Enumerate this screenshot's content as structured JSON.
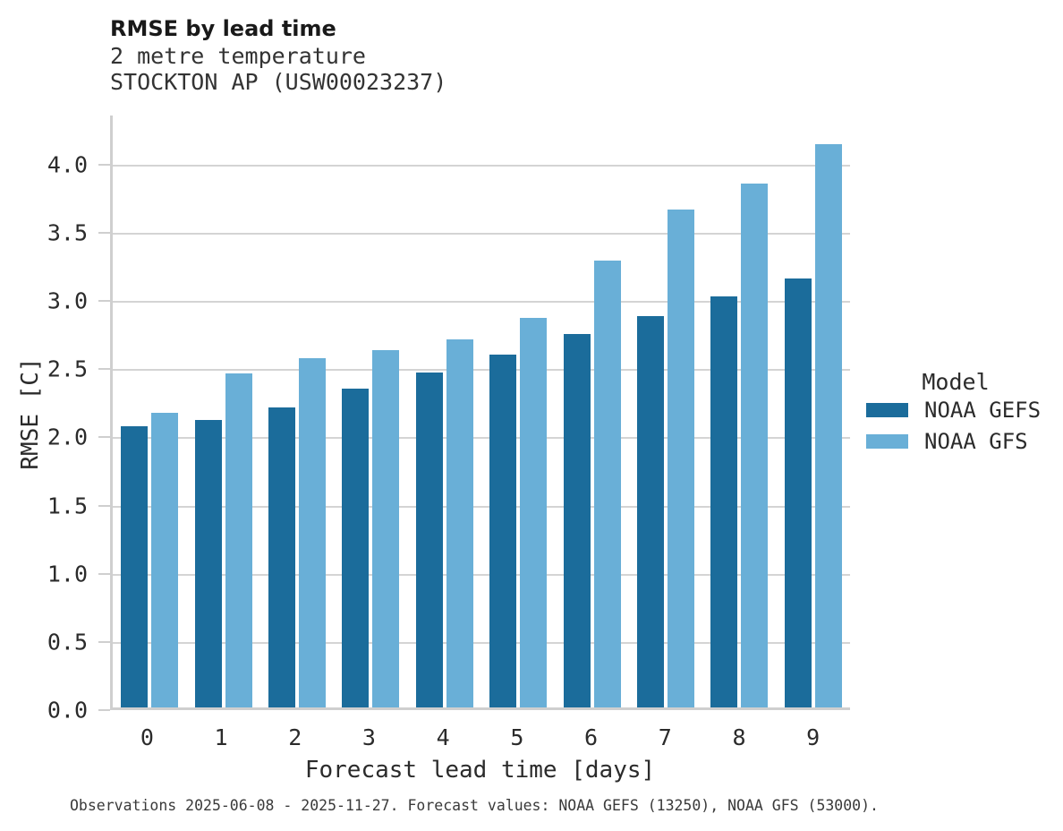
{
  "header": {
    "title": "RMSE by lead time",
    "subtitle1": "2 metre temperature",
    "subtitle2": "STOCKTON AP (USW00023237)"
  },
  "chart_data": {
    "type": "bar",
    "title": "RMSE by lead time",
    "subtitle": "2 metre temperature — STOCKTON AP (USW00023237)",
    "categories": [
      "0",
      "1",
      "2",
      "3",
      "4",
      "5",
      "6",
      "7",
      "8",
      "9"
    ],
    "series": [
      {
        "name": "NOAA GEFS",
        "color": "#1b6c9b",
        "values": [
          2.07,
          2.12,
          2.21,
          2.35,
          2.47,
          2.6,
          2.75,
          2.88,
          3.03,
          3.16
        ]
      },
      {
        "name": "NOAA GFS",
        "color": "#69afd7",
        "values": [
          2.17,
          2.46,
          2.57,
          2.63,
          2.71,
          2.87,
          3.29,
          3.67,
          3.86,
          4.15
        ]
      }
    ],
    "xlabel": "Forecast lead time [days]",
    "ylabel": "RMSE [C]",
    "ylim": [
      0,
      4.36
    ],
    "yticks": [
      0.0,
      0.5,
      1.0,
      1.5,
      2.0,
      2.5,
      3.0,
      3.5,
      4.0
    ],
    "grid": true,
    "legend_title": "Model",
    "legend_position": "right"
  },
  "footer": {
    "note": "Observations 2025-06-08 - 2025-11-27. Forecast values: NOAA GEFS (13250), NOAA GFS (53000)."
  },
  "colors": {
    "series_dark": "#1b6c9b",
    "series_light": "#69afd7",
    "gridline": "#d4d4d4",
    "spine": "#cfcfcf",
    "text": "#2b2b2b",
    "footer_text": "#3a3a3a"
  }
}
